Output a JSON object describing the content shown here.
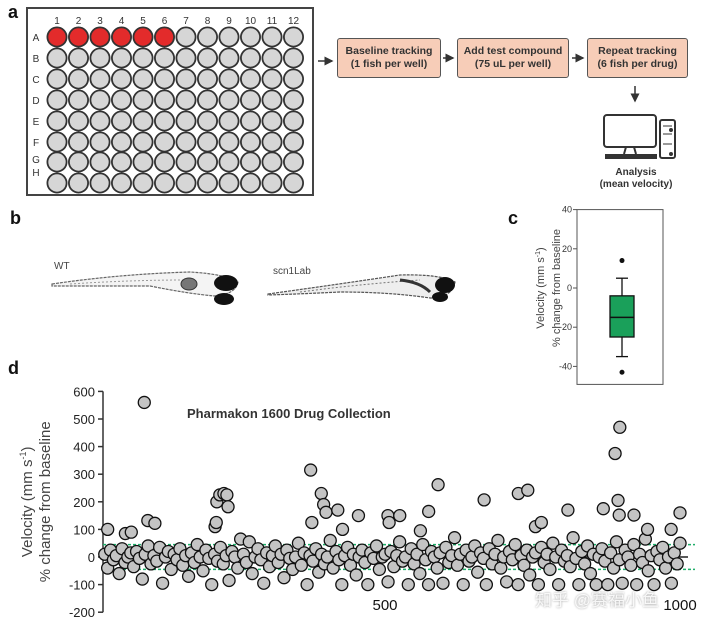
{
  "panels": {
    "a": "a",
    "b": "b",
    "c": "c",
    "d": "d"
  },
  "plate": {
    "columns": [
      "1",
      "2",
      "3",
      "4",
      "5",
      "6",
      "7",
      "8",
      "9",
      "10",
      "11",
      "12"
    ],
    "rows": [
      "A",
      "B",
      "C",
      "D",
      "E",
      "F",
      "G",
      "H"
    ],
    "filled_wells": [
      "A1",
      "A2",
      "A3",
      "A4",
      "A5",
      "A6"
    ],
    "filled_color": "#e32b2b",
    "empty_color": "#d6d6d6"
  },
  "workflow": {
    "steps": [
      {
        "line1": "Baseline tracking",
        "line2": "(1 fish per well)"
      },
      {
        "line1": "Add test compound",
        "line2": "(75 uL per well)"
      },
      {
        "line1": "Repeat tracking",
        "line2": "(6 fish per drug)"
      }
    ],
    "analysis": {
      "line1": "Analysis",
      "line2": "(mean velocity)"
    },
    "box_color": "#f7cdb8"
  },
  "fish": {
    "wt_label": "WT",
    "mutant_label": "scn1Lab"
  },
  "watermark": "知乎 @赛福小鱼",
  "chart_data": [
    {
      "id": "c",
      "type": "box",
      "ylabel_line1": "Velocity (mm s",
      "ylabel_sup": "-1",
      "ylabel_close": ")",
      "ylabel_line2": "% change from baseline",
      "ylim": [
        -40,
        40
      ],
      "yticks": [
        "40",
        "20",
        "0",
        "-20",
        "-40"
      ],
      "box": {
        "whisker_high": 5,
        "q3": -4,
        "median": -15,
        "q1": -25,
        "whisker_low": -35,
        "outliers": [
          14,
          -43
        ]
      },
      "color": "#1aa05a"
    },
    {
      "id": "d",
      "type": "scatter",
      "title": "Pharmakon 1600 Drug Collection",
      "ylabel_line1": "Velocity (mm s",
      "ylabel_sup": "-1",
      "ylabel_close": ")",
      "ylabel_line2": "% change from baseline",
      "ylim": [
        -200,
        600
      ],
      "xlim": [
        0,
        1010
      ],
      "yticks": [
        "600",
        "500",
        "400",
        "300",
        "200",
        "100",
        "0",
        "-100",
        "-200"
      ],
      "xticks": [
        "500",
        "1000"
      ],
      "threshold_lines": [
        45,
        -45
      ],
      "threshold_color": "#1fae6a",
      "marker_color": "#c4c4c4",
      "bulk": {
        "x_start": 25,
        "x_step": 4.9,
        "y": [
          10,
          -40,
          25,
          -10,
          5,
          -60,
          30,
          -20,
          0,
          15,
          -35,
          20,
          -5,
          -80,
          10,
          40,
          -25,
          5,
          -15,
          35,
          -95,
          0,
          20,
          -45,
          10,
          -10,
          30,
          -30,
          5,
          -70,
          15,
          -20,
          45,
          0,
          -50,
          25,
          -5,
          -100,
          10,
          -15,
          35,
          -25,
          5,
          -85,
          20,
          0,
          -40,
          65,
          10,
          -20,
          55,
          -60,
          0,
          30,
          -10,
          -95,
          15,
          -35,
          5,
          40,
          -20,
          10,
          -75,
          25,
          -5,
          -45,
          0,
          50,
          -30,
          15,
          -100,
          5,
          -15,
          30,
          -55,
          10,
          -25,
          0,
          60,
          -40,
          20,
          -10,
          -100,
          5,
          35,
          -30,
          10,
          -65,
          0,
          25,
          -20,
          -100,
          15,
          -5,
          40,
          -45,
          0,
          10,
          -90,
          20,
          -35,
          5,
          55,
          -15,
          0,
          -100,
          30,
          -25,
          10,
          -60,
          45,
          -10,
          -100,
          20,
          0,
          -40,
          15,
          -95,
          35,
          -20,
          5,
          70,
          -30,
          10,
          -100,
          25,
          -15,
          0,
          40,
          -55,
          15,
          -5,
          -100,
          30,
          -25,
          10,
          60,
          -40,
          0,
          -90,
          20,
          -10,
          45,
          -100,
          5,
          -30,
          25,
          -65,
          0,
          15,
          -100,
          35,
          -20,
          10,
          -45,
          50,
          0,
          -100,
          25,
          -15,
          5,
          -35,
          70,
          -5,
          -100,
          20,
          -25,
          40,
          -60,
          10,
          -100,
          0,
          30,
          -15,
          -100,
          15,
          -40,
          55,
          -10,
          -95,
          25,
          0,
          -30,
          45,
          -100,
          10,
          -20,
          65,
          -50,
          5,
          -100,
          20,
          -10,
          35,
          -40,
          0,
          -95,
          15,
          -25,
          50
        ]
      },
      "outliers": [
        [
          92,
          560
        ],
        [
          98,
          132
        ],
        [
          110,
          122
        ],
        [
          215,
          200
        ],
        [
          220,
          225
        ],
        [
          227,
          230
        ],
        [
          232,
          225
        ],
        [
          234,
          182
        ],
        [
          212,
          110
        ],
        [
          214,
          125
        ],
        [
          374,
          315
        ],
        [
          376,
          125
        ],
        [
          392,
          230
        ],
        [
          396,
          190
        ],
        [
          400,
          162
        ],
        [
          420,
          170
        ],
        [
          428,
          100
        ],
        [
          455,
          150
        ],
        [
          505,
          150
        ],
        [
          507,
          125
        ],
        [
          525,
          150
        ],
        [
          560,
          95
        ],
        [
          574,
          165
        ],
        [
          590,
          262
        ],
        [
          668,
          207
        ],
        [
          726,
          230
        ],
        [
          742,
          242
        ],
        [
          755,
          110
        ],
        [
          765,
          125
        ],
        [
          810,
          170
        ],
        [
          870,
          175
        ],
        [
          890,
          375
        ],
        [
          898,
          470
        ],
        [
          895,
          205
        ],
        [
          897,
          152
        ],
        [
          922,
          152
        ],
        [
          945,
          100
        ],
        [
          1000,
          160
        ],
        [
          985,
          100
        ],
        [
          30,
          100
        ],
        [
          60,
          85
        ],
        [
          70,
          90
        ]
      ]
    }
  ]
}
